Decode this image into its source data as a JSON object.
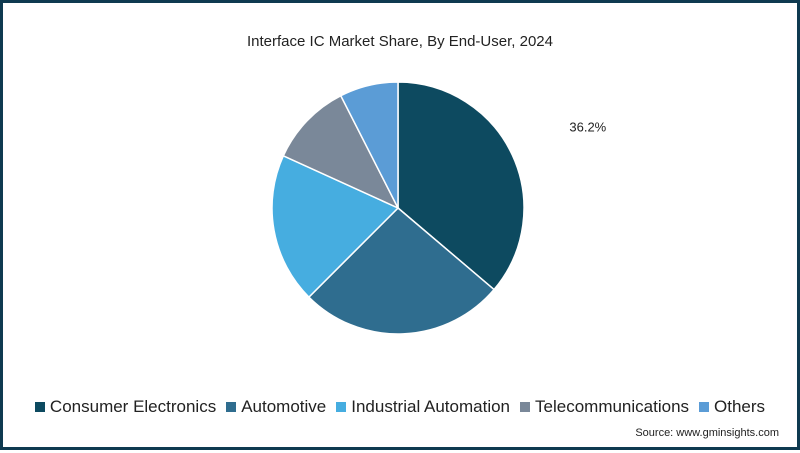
{
  "chart_data": {
    "type": "pie",
    "title": "Interface IC Market Share, By End-User, 2024",
    "categories": [
      "Consumer Electronics",
      "Automotive",
      "Industrial Automation",
      "Telecommunications",
      "Others"
    ],
    "values": [
      36.2,
      26.3,
      19.3,
      10.7,
      7.5
    ],
    "colors": [
      "#0d4a60",
      "#2f6d8f",
      "#46ade0",
      "#7a8899",
      "#5b9cd6"
    ],
    "data_labels": [
      {
        "category": "Consumer Electronics",
        "text": "36.2%"
      }
    ],
    "legend_position": "bottom",
    "source": "Source: www.gminsights.com"
  }
}
